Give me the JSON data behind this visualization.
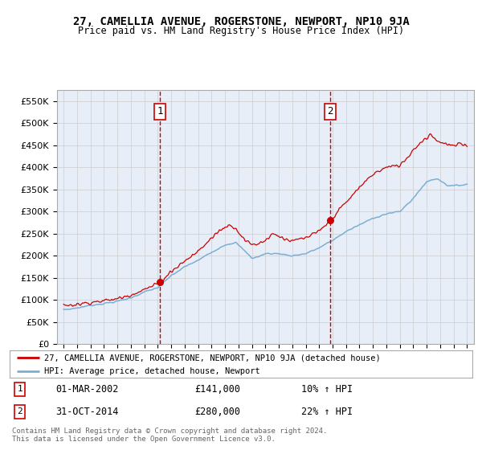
{
  "title": "27, CAMELLIA AVENUE, ROGERSTONE, NEWPORT, NP10 9JA",
  "subtitle": "Price paid vs. HM Land Registry's House Price Index (HPI)",
  "ylabel_ticks": [
    "£0",
    "£50K",
    "£100K",
    "£150K",
    "£200K",
    "£250K",
    "£300K",
    "£350K",
    "£400K",
    "£450K",
    "£500K",
    "£550K"
  ],
  "ytick_vals": [
    0,
    50000,
    100000,
    150000,
    200000,
    250000,
    300000,
    350000,
    400000,
    450000,
    500000,
    550000
  ],
  "ylim": [
    0,
    575000
  ],
  "xlim_start": 1994.5,
  "xlim_end": 2025.5,
  "sale1_x": 2002.17,
  "sale1_y": 141000,
  "sale1_label": "1",
  "sale1_date": "01-MAR-2002",
  "sale1_price": "£141,000",
  "sale1_hpi": "10% ↑ HPI",
  "sale2_x": 2014.83,
  "sale2_y": 280000,
  "sale2_label": "2",
  "sale2_date": "31-OCT-2014",
  "sale2_price": "£280,000",
  "sale2_hpi": "22% ↑ HPI",
  "line1_color": "#cc0000",
  "line2_color": "#7bafd4",
  "grid_color": "#cccccc",
  "plot_bg": "#e8eef8",
  "legend1": "27, CAMELLIA AVENUE, ROGERSTONE, NEWPORT, NP10 9JA (detached house)",
  "legend2": "HPI: Average price, detached house, Newport",
  "footer": "Contains HM Land Registry data © Crown copyright and database right 2024.\nThis data is licensed under the Open Government Licence v3.0.",
  "xtick_years": [
    1995,
    1996,
    1997,
    1998,
    1999,
    2000,
    2001,
    2002,
    2003,
    2004,
    2005,
    2006,
    2007,
    2008,
    2009,
    2010,
    2011,
    2012,
    2013,
    2014,
    2015,
    2016,
    2017,
    2018,
    2019,
    2020,
    2021,
    2022,
    2023,
    2024,
    2025
  ]
}
